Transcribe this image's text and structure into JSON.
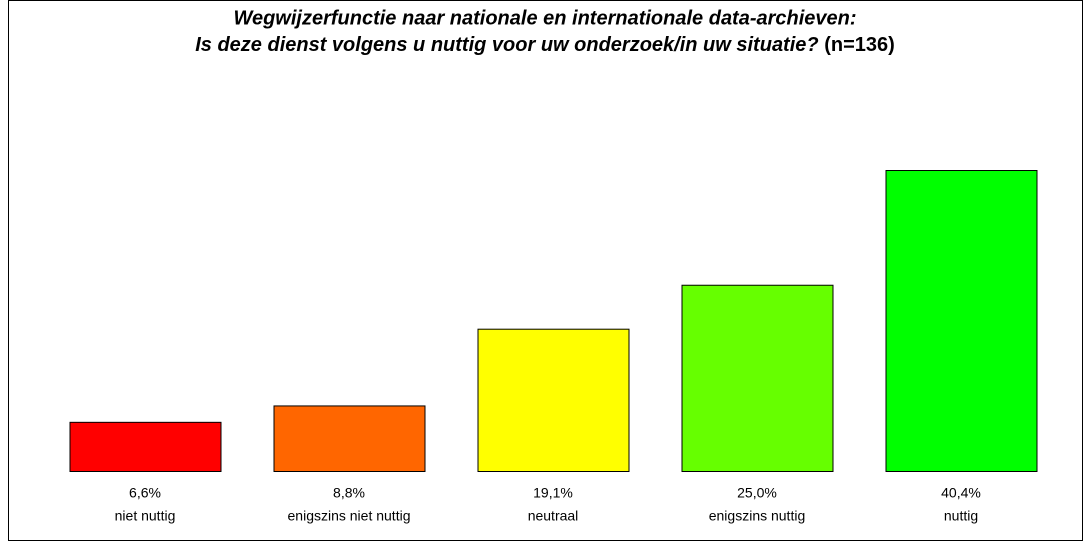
{
  "chart_data": {
    "type": "bar",
    "title": [
      "Wegwijzerfunctie naar nationale en internationale data-archieven:",
      "Is deze dienst volgens u nuttig voor uw onderzoek/in uw situatie?"
    ],
    "sample_size": "(n=136)",
    "categories": [
      "niet nuttig",
      "enigszins niet nuttig",
      "neutraal",
      "enigszins nuttig",
      "nuttig"
    ],
    "values": [
      6.6,
      8.8,
      19.1,
      25.0,
      40.4
    ],
    "value_labels": [
      "6,6%",
      "8,8%",
      "19,1%",
      "25,0%",
      "40,4%"
    ],
    "colors": [
      "#ff0000",
      "#ff6600",
      "#ffff00",
      "#66ff00",
      "#00ff00"
    ]
  }
}
